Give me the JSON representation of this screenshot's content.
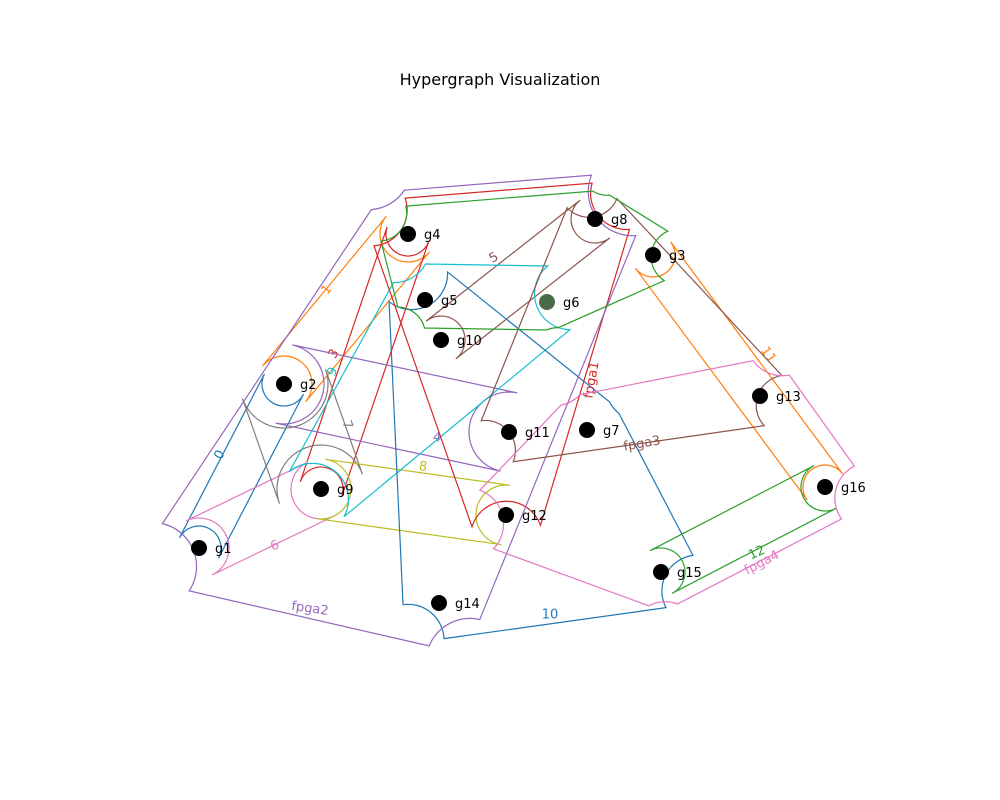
{
  "title": "Hypergraph Visualization",
  "colors": {
    "blue": "#1f77b4",
    "orange": "#ff7f0e",
    "green": "#2ca02c",
    "red": "#d62728",
    "purple": "#9467bd",
    "brown": "#8c564b",
    "pink": "#e377c2",
    "gray": "#7f7f7f",
    "olive": "#bcbd22",
    "cyan": "#17becf"
  },
  "nodes": [
    {
      "id": "g1"
    },
    {
      "id": "g2"
    },
    {
      "id": "g3"
    },
    {
      "id": "g4"
    },
    {
      "id": "g5"
    },
    {
      "id": "g6"
    },
    {
      "id": "g7"
    },
    {
      "id": "g8"
    },
    {
      "id": "g9"
    },
    {
      "id": "g10"
    },
    {
      "id": "g11"
    },
    {
      "id": "g12"
    },
    {
      "id": "g13"
    },
    {
      "id": "g14"
    },
    {
      "id": "g15"
    },
    {
      "id": "g16"
    }
  ],
  "hyperedges": [
    {
      "label": "0",
      "color": "blue",
      "members": [
        "g1",
        "g2"
      ]
    },
    {
      "label": "1",
      "color": "orange",
      "members": [
        "g2",
        "g4"
      ]
    },
    {
      "label": "3",
      "color": "red",
      "members": [
        "g4",
        "g9"
      ]
    },
    {
      "label": "4",
      "color": "purple",
      "members": [
        "g2",
        "g11"
      ]
    },
    {
      "label": "5",
      "color": "brown",
      "members": [
        "g8",
        "g10"
      ]
    },
    {
      "label": "6",
      "color": "pink",
      "members": [
        "g1",
        "g9"
      ]
    },
    {
      "label": "7",
      "color": "gray",
      "members": [
        "g2",
        "g9"
      ]
    },
    {
      "label": "8",
      "color": "olive",
      "members": [
        "g9",
        "g12"
      ]
    },
    {
      "label": "9",
      "color": "cyan",
      "members": [
        "g5",
        "g6",
        "g9"
      ]
    },
    {
      "label": "10",
      "color": "blue",
      "members": [
        "g5",
        "g7",
        "g14",
        "g15"
      ]
    },
    {
      "label": "11",
      "color": "orange",
      "members": [
        "g3",
        "g16"
      ]
    },
    {
      "label": "12",
      "color": "green",
      "members": [
        "g15",
        "g16"
      ]
    },
    {
      "label": "fpga1",
      "color": "red",
      "members": [
        "g4",
        "g8",
        "g12"
      ]
    },
    {
      "label": "fpga2",
      "color": "purple",
      "members": [
        "g1",
        "g4",
        "g8",
        "g14"
      ]
    },
    {
      "label": "fpga3",
      "color": "brown",
      "members": [
        "g8",
        "g11",
        "g13"
      ]
    },
    {
      "label": "fpga4",
      "color": "pink",
      "members": [
        "g7",
        "g12",
        "g13",
        "g15",
        "g16"
      ]
    },
    {
      "label": "",
      "color": "green",
      "members": [
        "g3",
        "g4",
        "g5",
        "g6",
        "g8"
      ]
    }
  ]
}
